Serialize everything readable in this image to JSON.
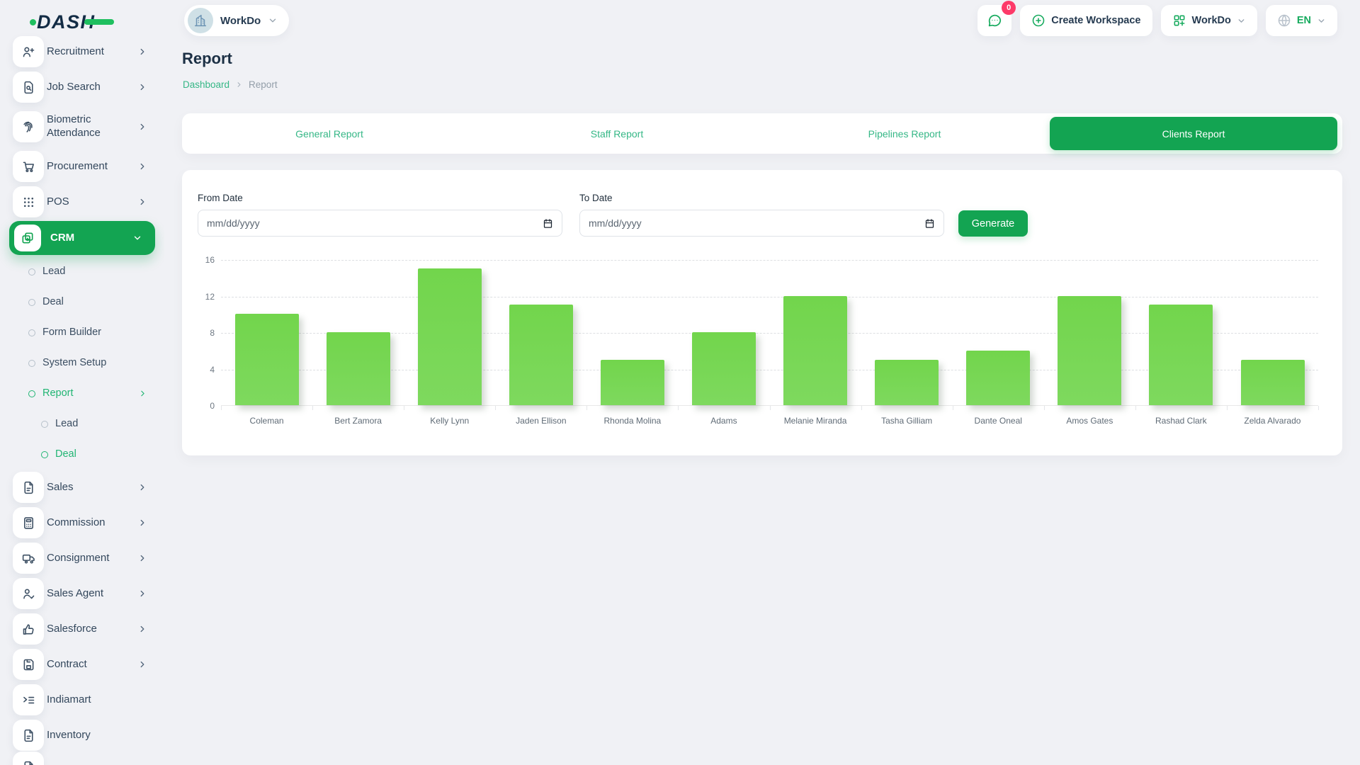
{
  "header": {
    "logo_text": "DASH",
    "workspace_selector": {
      "name": "WorkDo"
    },
    "messages_badge": "0",
    "create_workspace_label": "Create Workspace",
    "workspace_menu_label": "WorkDo",
    "language": "EN"
  },
  "sidebar": {
    "items": [
      {
        "kind": "root",
        "label": "Recruitment",
        "icon": "person-plus",
        "chevron": "right"
      },
      {
        "kind": "root",
        "label": "Job Search",
        "icon": "doc-search",
        "chevron": "right"
      },
      {
        "kind": "root",
        "label": "Biometric Attendance",
        "icon": "fingerprint",
        "chevron": "right",
        "two_line": true
      },
      {
        "kind": "root",
        "label": "Procurement",
        "icon": "cart",
        "chevron": "right"
      },
      {
        "kind": "root",
        "label": "POS",
        "icon": "grid-dots",
        "chevron": "right"
      },
      {
        "kind": "root-active",
        "label": "CRM",
        "icon": "squares-plus",
        "chevron": "down"
      },
      {
        "kind": "sub",
        "label": "Lead"
      },
      {
        "kind": "sub",
        "label": "Deal"
      },
      {
        "kind": "sub",
        "label": "Form Builder"
      },
      {
        "kind": "sub",
        "label": "System Setup"
      },
      {
        "kind": "sub",
        "label": "Report",
        "active": true,
        "chevron": "right"
      },
      {
        "kind": "subsub",
        "label": "Lead"
      },
      {
        "kind": "subsub",
        "label": "Deal",
        "active": true
      },
      {
        "kind": "root",
        "label": "Sales",
        "icon": "file",
        "chevron": "right"
      },
      {
        "kind": "root",
        "label": "Commission",
        "icon": "calculator",
        "chevron": "right"
      },
      {
        "kind": "root",
        "label": "Consignment",
        "icon": "truck",
        "chevron": "right"
      },
      {
        "kind": "root",
        "label": "Sales Agent",
        "icon": "person-check",
        "chevron": "right"
      },
      {
        "kind": "root",
        "label": "Salesforce",
        "icon": "thumbs-up",
        "chevron": "right"
      },
      {
        "kind": "root",
        "label": "Contract",
        "icon": "floppy",
        "chevron": "right"
      },
      {
        "kind": "root",
        "label": "Indiamart",
        "icon": "list-arrow"
      },
      {
        "kind": "root",
        "label": "Inventory",
        "icon": "file"
      },
      {
        "kind": "partial",
        "icon": "file"
      }
    ]
  },
  "page": {
    "title": "Report",
    "breadcrumb": {
      "home": "Dashboard",
      "current": "Report"
    }
  },
  "tabs": [
    {
      "label": "General Report",
      "active": false
    },
    {
      "label": "Staff Report",
      "active": false
    },
    {
      "label": "Pipelines Report",
      "active": false
    },
    {
      "label": "Clients Report",
      "active": true
    }
  ],
  "filter": {
    "from_label": "From Date",
    "to_label": "To Date",
    "date_placeholder": "mm/dd/yyyy",
    "generate_label": "Generate"
  },
  "chart_data": {
    "type": "bar",
    "title": "",
    "xlabel": "",
    "ylabel": "",
    "categories": [
      "Coleman",
      "Bert Zamora",
      "Kelly Lynn",
      "Jaden Ellison",
      "Rhonda Molina",
      "Adams",
      "Melanie Miranda",
      "Tasha Gilliam",
      "Dante Oneal",
      "Amos Gates",
      "Rashad Clark",
      "Zelda Alvarado"
    ],
    "values": [
      10,
      8,
      15,
      11,
      5,
      8,
      12,
      5,
      6,
      12,
      11,
      5
    ],
    "ylim": [
      0,
      16
    ],
    "yticks": [
      0,
      4,
      8,
      12,
      16
    ],
    "grid": "horizontal-dashed",
    "legend": "none",
    "bar_color": "#74d64f"
  },
  "colors": {
    "accent_green": "#13a452",
    "link_green": "#35b786",
    "bar_green": "#74d64f",
    "badge_pink": "#fd3a69",
    "navy_text": "#253a50",
    "page_bg": "#f0f1f5"
  }
}
